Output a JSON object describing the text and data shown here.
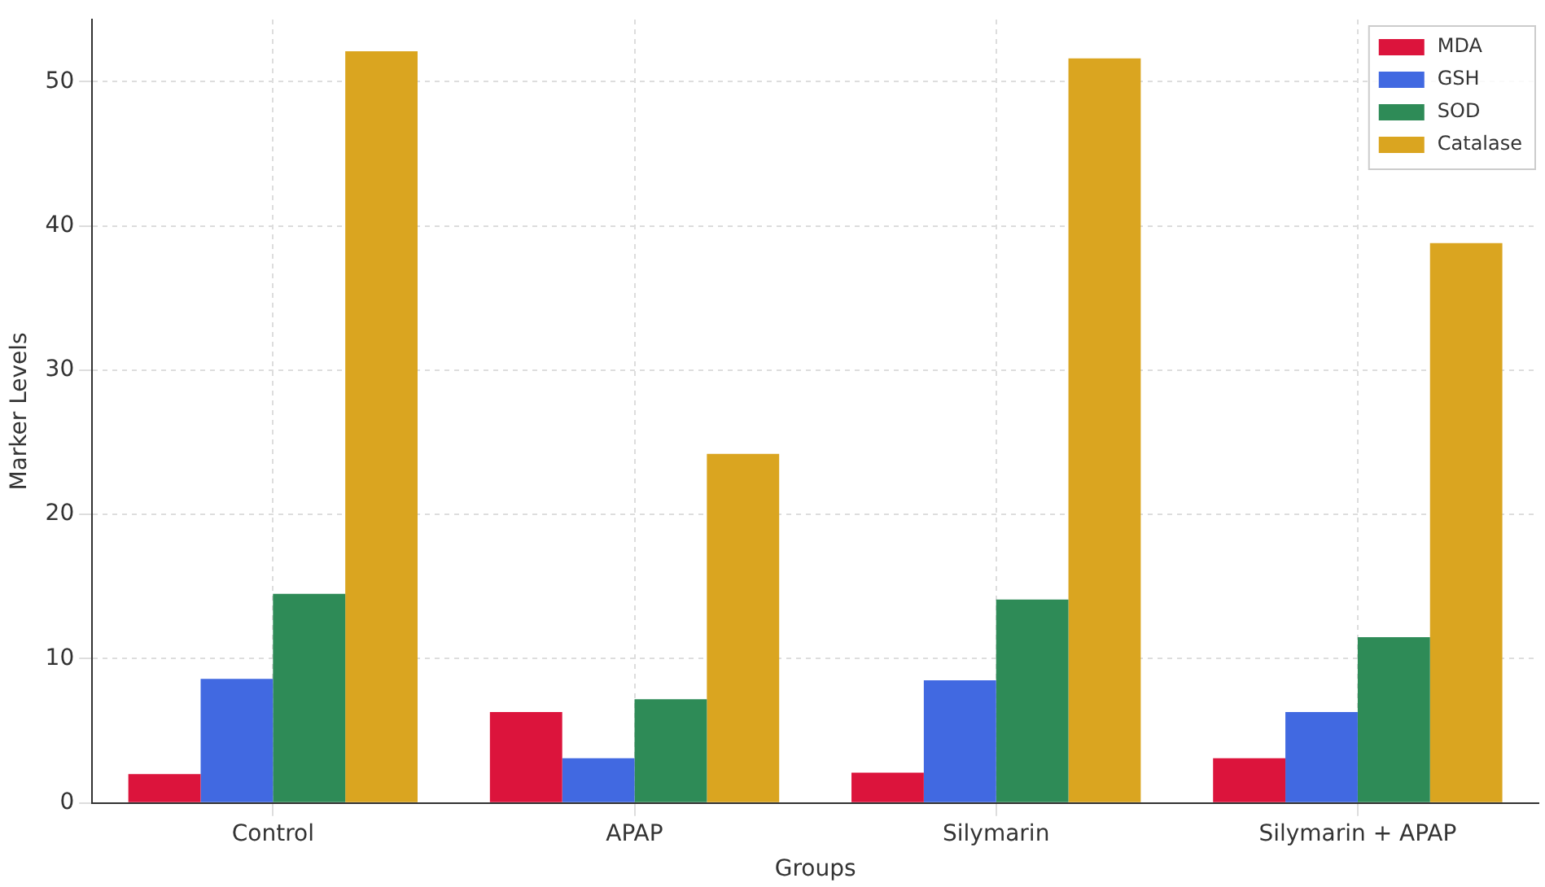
{
  "chart_data": {
    "type": "bar",
    "xlabel": "Groups",
    "ylabel": "Marker Levels",
    "categories": [
      "Control",
      "APAP",
      "Silymarin",
      "Silymarin + APAP"
    ],
    "series": [
      {
        "name": "MDA",
        "color": "#dc143c",
        "values": [
          2.0,
          6.3,
          2.1,
          3.1
        ]
      },
      {
        "name": "GSH",
        "color": "#4169e1",
        "values": [
          8.6,
          3.1,
          8.5,
          6.3
        ]
      },
      {
        "name": "SOD",
        "color": "#2e8b57",
        "values": [
          14.5,
          7.2,
          14.1,
          11.5
        ]
      },
      {
        "name": "Catalase",
        "color": "#daa520",
        "values": [
          52.1,
          24.2,
          51.6,
          38.8
        ]
      }
    ],
    "ylim": [
      0,
      54.3
    ],
    "yticks": [
      0,
      10,
      20,
      30,
      40,
      50
    ],
    "grid": true,
    "legend": "top right"
  }
}
